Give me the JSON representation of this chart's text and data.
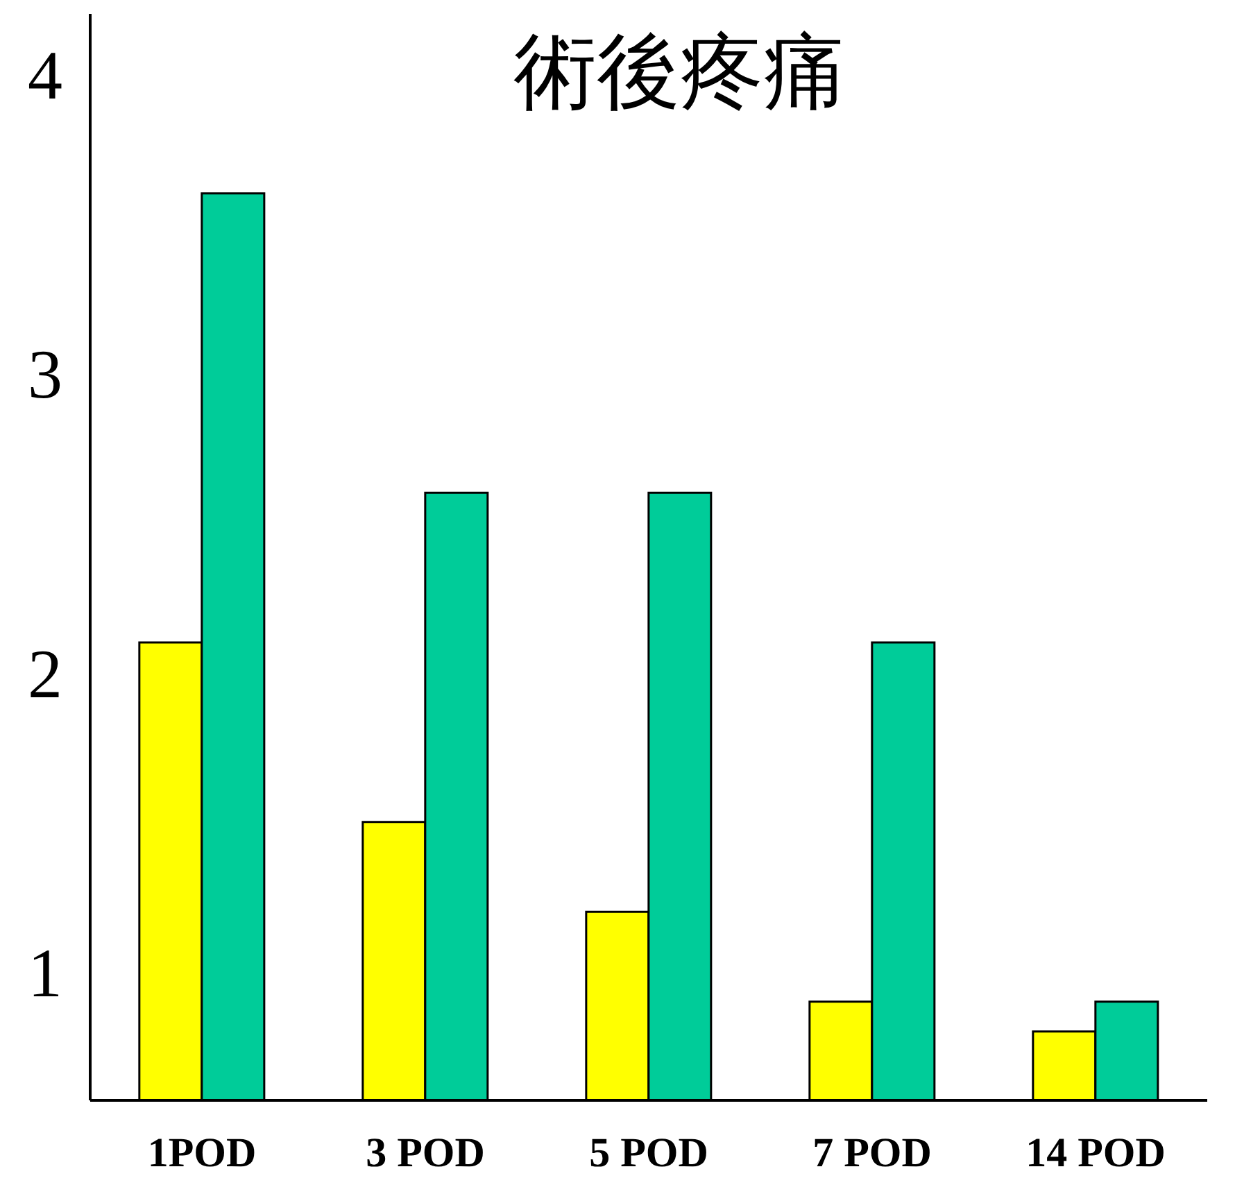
{
  "chart_data": {
    "type": "bar",
    "title": "術後疼痛",
    "categories": [
      "1POD",
      "3 POD",
      "5 POD",
      "7 POD",
      "14 POD"
    ],
    "series": [
      {
        "color": "#ffff00",
        "values": [
          2.1,
          1.5,
          1.2,
          0.9,
          0.8
        ]
      },
      {
        "color": "#00cc99",
        "values": [
          3.6,
          2.6,
          2.6,
          2.1,
          0.9
        ]
      }
    ],
    "ylim": [
      0.57,
      4.2
    ],
    "yticks": [
      1,
      2,
      3,
      4
    ],
    "grid": false,
    "legend": false
  }
}
